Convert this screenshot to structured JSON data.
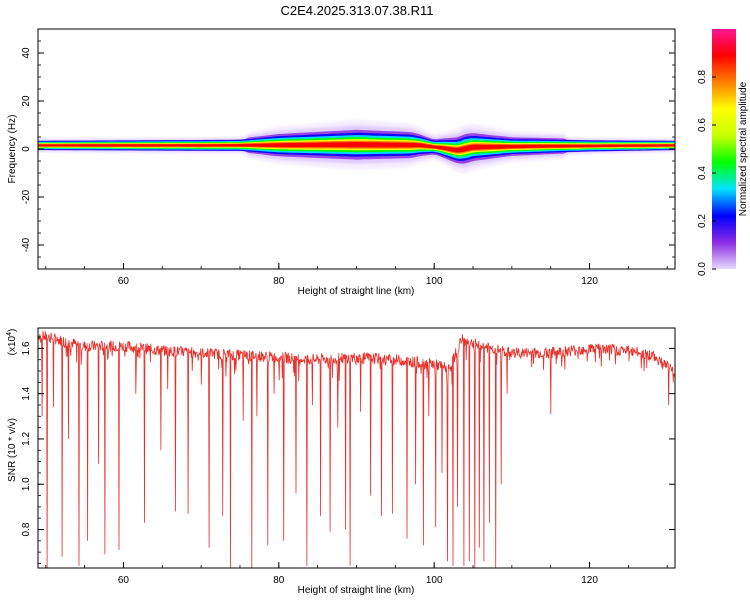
{
  "figure": {
    "title": "C2E4.2025.313.07.38.R11"
  },
  "chart_data": [
    {
      "type": "heatmap",
      "xlabel": "Height of straight line (km)",
      "ylabel": "Frequency (Hz)",
      "xlim": [
        49,
        131
      ],
      "ylim": [
        -50,
        50
      ],
      "xticks": [
        60,
        80,
        100,
        120
      ],
      "yticks": [
        -40,
        -20,
        0,
        20,
        40
      ],
      "colorbar": {
        "label": "Normalized spectral amplitude",
        "range": [
          0,
          1
        ],
        "ticks": [
          "0.0",
          "0.2",
          "0.4",
          "0.6",
          "0.8"
        ],
        "colors": [
          "#e8d8ff",
          "#8a2be2",
          "#0000ff",
          "#00e5ff",
          "#00ff00",
          "#c8ff00",
          "#ffff00",
          "#ff8000",
          "#ff0000",
          "#ff1493"
        ]
      },
      "band_center_hz": [
        {
          "x": 49,
          "f": 1.5
        },
        {
          "x": 70,
          "f": 1.5
        },
        {
          "x": 80,
          "f": 1.6
        },
        {
          "x": 90,
          "f": 1.8
        },
        {
          "x": 98,
          "f": 1.6
        },
        {
          "x": 101,
          "f": 0.5
        },
        {
          "x": 103,
          "f": -0.6
        },
        {
          "x": 105,
          "f": 0.8
        },
        {
          "x": 115,
          "f": 1.2
        },
        {
          "x": 131,
          "f": 1.5
        }
      ],
      "band_halfwidth_hz": [
        {
          "x": 49,
          "w": 1.5
        },
        {
          "x": 75,
          "w": 1.8
        },
        {
          "x": 80,
          "w": 3.0
        },
        {
          "x": 90,
          "w": 4.0
        },
        {
          "x": 97,
          "w": 3.5
        },
        {
          "x": 100,
          "w": 2.0
        },
        {
          "x": 104,
          "w": 4.0
        },
        {
          "x": 110,
          "w": 2.5
        },
        {
          "x": 120,
          "w": 1.8
        },
        {
          "x": 131,
          "w": 1.5
        }
      ]
    },
    {
      "type": "line",
      "xlabel": "Height of straight line (km)",
      "ylabel": "SNR (10 * v/v)",
      "yscale_label": "(x10",
      "yscale_exponent": "4",
      "xlim": [
        49,
        131
      ],
      "ylim": [
        0.63,
        1.69
      ],
      "xticks": [
        60,
        80,
        100,
        120
      ],
      "yticks": [
        "0.8",
        "1.0",
        "1.2",
        "1.4",
        "1.6"
      ],
      "ytick_values": [
        0.8,
        1.0,
        1.2,
        1.4,
        1.6
      ],
      "color": "#e8302a",
      "baseline": [
        {
          "x": 49,
          "y": 1.66
        },
        {
          "x": 55,
          "y": 1.61
        },
        {
          "x": 60,
          "y": 1.61
        },
        {
          "x": 65,
          "y": 1.59
        },
        {
          "x": 70,
          "y": 1.58
        },
        {
          "x": 75,
          "y": 1.57
        },
        {
          "x": 80,
          "y": 1.56
        },
        {
          "x": 85,
          "y": 1.55
        },
        {
          "x": 90,
          "y": 1.56
        },
        {
          "x": 95,
          "y": 1.55
        },
        {
          "x": 100,
          "y": 1.53
        },
        {
          "x": 102,
          "y": 1.51
        },
        {
          "x": 103.5,
          "y": 1.64
        },
        {
          "x": 106,
          "y": 1.61
        },
        {
          "x": 110,
          "y": 1.58
        },
        {
          "x": 115,
          "y": 1.58
        },
        {
          "x": 120,
          "y": 1.6
        },
        {
          "x": 125,
          "y": 1.59
        },
        {
          "x": 128,
          "y": 1.57
        },
        {
          "x": 131,
          "y": 1.5
        }
      ],
      "dips": [
        {
          "x": 49.5,
          "y": 1.3
        },
        {
          "x": 50.2,
          "y": 0.63
        },
        {
          "x": 51.0,
          "y": 1.34
        },
        {
          "x": 52.1,
          "y": 0.68
        },
        {
          "x": 52.9,
          "y": 1.2
        },
        {
          "x": 54.3,
          "y": 0.64
        },
        {
          "x": 55.4,
          "y": 0.75
        },
        {
          "x": 56.8,
          "y": 1.09
        },
        {
          "x": 57.6,
          "y": 0.69
        },
        {
          "x": 59.4,
          "y": 0.71
        },
        {
          "x": 61.6,
          "y": 1.4
        },
        {
          "x": 62.7,
          "y": 0.83
        },
        {
          "x": 64.8,
          "y": 1.15
        },
        {
          "x": 65.7,
          "y": 1.42
        },
        {
          "x": 66.7,
          "y": 0.88
        },
        {
          "x": 68.3,
          "y": 0.87
        },
        {
          "x": 70.0,
          "y": 1.44
        },
        {
          "x": 71.0,
          "y": 0.72
        },
        {
          "x": 72.8,
          "y": 0.86
        },
        {
          "x": 73.8,
          "y": 0.63
        },
        {
          "x": 75.4,
          "y": 1.28
        },
        {
          "x": 76.5,
          "y": 0.63
        },
        {
          "x": 77.2,
          "y": 1.3
        },
        {
          "x": 78.6,
          "y": 0.73
        },
        {
          "x": 79.4,
          "y": 1.4
        },
        {
          "x": 80.6,
          "y": 0.75
        },
        {
          "x": 82.2,
          "y": 0.96
        },
        {
          "x": 83.6,
          "y": 0.64
        },
        {
          "x": 84.3,
          "y": 1.35
        },
        {
          "x": 85.4,
          "y": 0.86
        },
        {
          "x": 86.6,
          "y": 0.79
        },
        {
          "x": 87.6,
          "y": 1.25
        },
        {
          "x": 88.6,
          "y": 0.8
        },
        {
          "x": 89.2,
          "y": 0.64
        },
        {
          "x": 90.5,
          "y": 1.32
        },
        {
          "x": 91.8,
          "y": 0.95
        },
        {
          "x": 93.2,
          "y": 0.86
        },
        {
          "x": 94.6,
          "y": 0.87
        },
        {
          "x": 96.5,
          "y": 0.76
        },
        {
          "x": 97.6,
          "y": 1.0
        },
        {
          "x": 98.6,
          "y": 0.73
        },
        {
          "x": 99.3,
          "y": 1.3
        },
        {
          "x": 100.2,
          "y": 0.81
        },
        {
          "x": 101.0,
          "y": 1.05
        },
        {
          "x": 101.7,
          "y": 0.66
        },
        {
          "x": 102.4,
          "y": 0.64
        },
        {
          "x": 103.0,
          "y": 0.9
        },
        {
          "x": 103.8,
          "y": 0.64
        },
        {
          "x": 104.5,
          "y": 0.66
        },
        {
          "x": 105.2,
          "y": 0.63
        },
        {
          "x": 105.8,
          "y": 0.72
        },
        {
          "x": 106.4,
          "y": 0.66
        },
        {
          "x": 107.1,
          "y": 0.83
        },
        {
          "x": 107.9,
          "y": 0.63
        },
        {
          "x": 108.6,
          "y": 1.0
        },
        {
          "x": 109.4,
          "y": 1.4
        },
        {
          "x": 115.0,
          "y": 1.31
        },
        {
          "x": 116.4,
          "y": 1.52
        },
        {
          "x": 121.5,
          "y": 1.52
        },
        {
          "x": 127.0,
          "y": 1.5
        },
        {
          "x": 130.2,
          "y": 1.35
        }
      ]
    }
  ]
}
